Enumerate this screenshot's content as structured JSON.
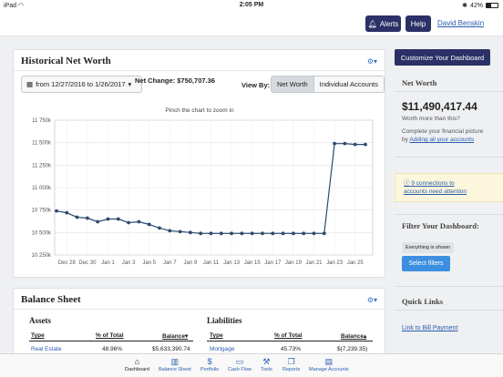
{
  "status_bar": {
    "device": "iPad",
    "time": "2:05 PM",
    "battery": "42%"
  },
  "header": {
    "alerts_label": "Alerts",
    "help_label": "Help",
    "user_name": "David Benskin"
  },
  "net_worth_card": {
    "title": "Historical Net Worth",
    "date_range": "from 12/27/2016 to 1/26/2017",
    "net_change": "Net Change: $750,707.36",
    "view_by_label": "View By:",
    "view_options": [
      "Net Worth",
      "Individual Accounts"
    ],
    "chart_hint": "Pinch the chart to zoom in"
  },
  "chart_data": {
    "type": "line",
    "title": "",
    "xlabel": "",
    "ylabel": "",
    "y_ticks": [
      "11 750k",
      "11 500k",
      "11 250k",
      "11 000k",
      "10 750k",
      "10 500k",
      "10 250k"
    ],
    "ylim": [
      10250000,
      11750000
    ],
    "x_ticks": [
      "Dec 28",
      "Dec 30",
      "Jan 1",
      "Jan 3",
      "Jan 5",
      "Jan 7",
      "Jan 9",
      "Jan 11",
      "Jan 13",
      "Jan 15",
      "Jan 17",
      "Jan 19",
      "Jan 21",
      "Jan 23",
      "Jan 25"
    ],
    "x": [
      "Dec 27",
      "Dec 28",
      "Dec 29",
      "Dec 30",
      "Dec 31",
      "Jan 1",
      "Jan 2",
      "Jan 3",
      "Jan 4",
      "Jan 5",
      "Jan 6",
      "Jan 7",
      "Jan 8",
      "Jan 9",
      "Jan 10",
      "Jan 11",
      "Jan 12",
      "Jan 13",
      "Jan 14",
      "Jan 15",
      "Jan 16",
      "Jan 17",
      "Jan 18",
      "Jan 19",
      "Jan 20",
      "Jan 21",
      "Jan 22",
      "Jan 23",
      "Jan 24",
      "Jan 25",
      "Jan 26"
    ],
    "values": [
      10740000,
      10720000,
      10670000,
      10660000,
      10620000,
      10650000,
      10650000,
      10610000,
      10620000,
      10590000,
      10550000,
      10520000,
      10510000,
      10500000,
      10490000,
      10490000,
      10490000,
      10490000,
      10490000,
      10490000,
      10490000,
      10490000,
      10490000,
      10490000,
      10490000,
      10490000,
      10490000,
      11490000,
      11490000,
      11480000,
      11480000
    ],
    "grid": true,
    "line_color": "#2c4a6e"
  },
  "balance_sheet": {
    "title": "Balance Sheet",
    "assets": {
      "heading": "Assets",
      "columns": [
        "Type",
        "% of Total",
        "Balance"
      ],
      "rows": [
        {
          "type": "Real Estate",
          "pct": "48.96%",
          "balance": "$5,633,390.74"
        }
      ]
    },
    "liabilities": {
      "heading": "Liabilities",
      "columns": [
        "Type",
        "% of Total",
        "Balance"
      ],
      "rows": [
        {
          "type": "Mortgage",
          "pct": "45.73%",
          "balance": "$(7,239.35)"
        }
      ]
    }
  },
  "sidebar": {
    "customize_label": "Customize Your Dashboard",
    "net_worth_title": "Net Worth",
    "net_worth_value": "$11,490,417.44",
    "worth_more_text": "Worth more than this?",
    "complete_text": "Complete your financial picture",
    "complete_by": "by",
    "add_accounts_link": "Adding all your accounts",
    "connections_count": "9",
    "connections_text": "connections to",
    "connections_text2": "accounts need attention",
    "filter_title": "Filter Your Dashboard:",
    "everything_shown": "Everything is shown",
    "select_filters_label": "Select filters",
    "quick_links_title": "Quick Links",
    "bill_payment_link": "Link to Bill Payment"
  },
  "tabbar": {
    "tabs": [
      {
        "label": "Dashboard",
        "icon": "home-icon"
      },
      {
        "label": "Balance Sheet",
        "icon": "columns-icon"
      },
      {
        "label": "Portfolio",
        "icon": "dollar-icon"
      },
      {
        "label": "Cash Flow",
        "icon": "card-icon"
      },
      {
        "label": "Tools",
        "icon": "tools-icon"
      },
      {
        "label": "Reports",
        "icon": "reports-icon"
      },
      {
        "label": "Manage Accounts",
        "icon": "manage-icon"
      }
    ]
  }
}
